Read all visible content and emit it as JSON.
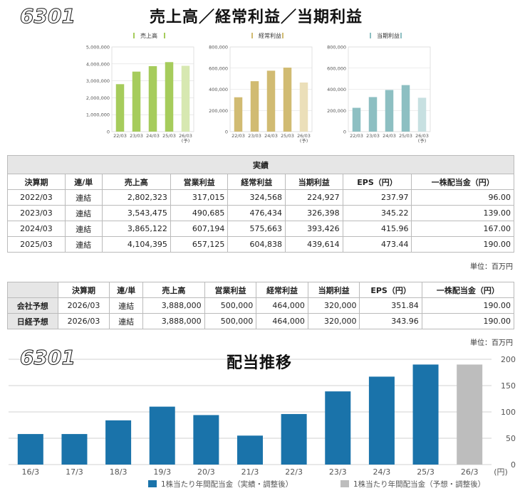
{
  "header": {
    "code": "6301",
    "title": "売上高／経常利益／当期利益"
  },
  "mini_charts": [
    {
      "name": "sales",
      "title": "売上高",
      "color": "#a6cc5c",
      "forecast_color": "#d7e8b1",
      "y_ticks": [
        "5,000,000",
        "4,000,000",
        "3,000,000",
        "2,000,000",
        "1,000,000",
        "0"
      ],
      "ymax": 5000000,
      "categories": [
        "22/03",
        "23/03",
        "24/03",
        "25/03",
        "26/03\n(予)"
      ],
      "values": [
        2802323,
        3543475,
        3865122,
        4104395,
        3888000
      ]
    },
    {
      "name": "ordinary",
      "title": "経常利益",
      "color": "#d1bb72",
      "forecast_color": "#ebdfb9",
      "y_ticks": [
        "800,000",
        "600,000",
        "400,000",
        "200,000",
        "0"
      ],
      "ymax": 800000,
      "categories": [
        "22/03",
        "23/03",
        "24/03",
        "25/03",
        "26/03\n(予)"
      ],
      "values": [
        324568,
        476434,
        575663,
        604838,
        464000
      ]
    },
    {
      "name": "net",
      "title": "当期利益",
      "color": "#8dbfc2",
      "forecast_color": "#c7e0e1",
      "y_ticks": [
        "800,000",
        "600,000",
        "400,000",
        "200,000",
        "0"
      ],
      "ymax": 800000,
      "categories": [
        "22/03",
        "23/03",
        "24/03",
        "25/03",
        "26/03\n(予)"
      ],
      "values": [
        224927,
        326398,
        393426,
        439614,
        320000
      ]
    }
  ],
  "results_table": {
    "section": "実績",
    "headers": [
      "決算期",
      "連/単",
      "売上高",
      "営業利益",
      "経常利益",
      "当期利益",
      "EPS（円）",
      "一株配当金（円）"
    ],
    "rows": [
      [
        "2022/03",
        "連結",
        "2,802,323",
        "317,015",
        "324,568",
        "224,927",
        "237.97",
        "96.00"
      ],
      [
        "2023/03",
        "連結",
        "3,543,475",
        "490,685",
        "476,434",
        "326,398",
        "345.22",
        "139.00"
      ],
      [
        "2024/03",
        "連結",
        "3,865,122",
        "607,194",
        "575,663",
        "393,426",
        "415.96",
        "167.00"
      ],
      [
        "2025/03",
        "連結",
        "4,104,395",
        "657,125",
        "604,838",
        "439,614",
        "473.44",
        "190.00"
      ]
    ],
    "unit": "単位：百万円"
  },
  "forecast_table": {
    "headers": [
      "決算期",
      "連/単",
      "売上高",
      "営業利益",
      "経常利益",
      "当期利益",
      "EPS（円）",
      "一株配当金（円）"
    ],
    "rows": [
      {
        "label": "会社予想",
        "cells": [
          "2026/03",
          "連結",
          "3,888,000",
          "500,000",
          "464,000",
          "320,000",
          "351.84",
          "190.00"
        ]
      },
      {
        "label": "日経予想",
        "cells": [
          "2026/03",
          "連結",
          "3,888,000",
          "500,000",
          "464,000",
          "320,000",
          "343.96",
          "190.00"
        ]
      }
    ],
    "unit": "単位：百万円"
  },
  "dividend": {
    "code": "6301",
    "title": "配当推移"
  },
  "chart_data": {
    "type": "bar",
    "categories": [
      "16/3",
      "17/3",
      "18/3",
      "19/3",
      "20/3",
      "21/3",
      "22/3",
      "23/3",
      "24/3",
      "25/3",
      "26/3"
    ],
    "series": [
      {
        "name": "1株当たり年間配当金（実績・調整後）",
        "color": "#1a73aa",
        "values": [
          58,
          58,
          84,
          110,
          94,
          55,
          96,
          139,
          167,
          190,
          null
        ]
      },
      {
        "name": "1株当たり年間配当金（予想・調整後）",
        "color": "#bdbdbd",
        "values": [
          null,
          null,
          null,
          null,
          null,
          null,
          null,
          null,
          null,
          null,
          190
        ]
      }
    ],
    "y_ticks": [
      "200",
      "150",
      "100",
      "50",
      "0"
    ],
    "ylim": [
      0,
      200
    ],
    "x_unit": "(円)",
    "grid": true,
    "legend": "bottom"
  }
}
